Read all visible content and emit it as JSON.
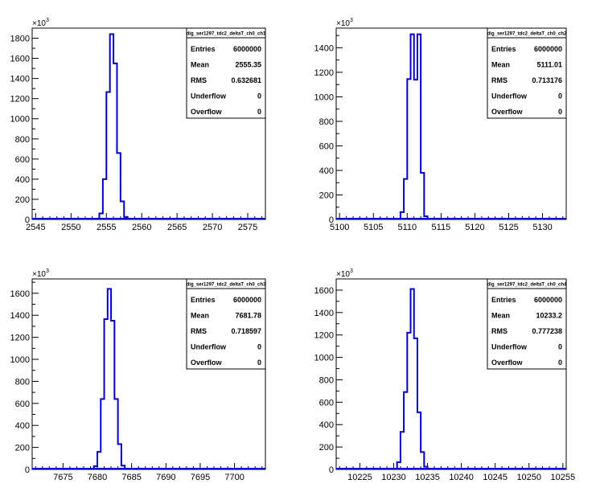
{
  "chart_data": [
    {
      "type": "histogram",
      "title": "dig_ser1297_tdc2_deltaT_ch0_ch1",
      "y_multiplier_label": "×10",
      "y_multiplier_exponent": "3",
      "xlim": [
        2544.5,
        2577.5
      ],
      "ylim": [
        0,
        1900
      ],
      "xticks": [
        2545,
        2550,
        2555,
        2560,
        2565,
        2570,
        2575
      ],
      "yticks": [
        0,
        200,
        400,
        600,
        800,
        1000,
        1200,
        1400,
        1600,
        1800
      ],
      "bins": [
        {
          "x0": 2553.5,
          "x1": 2554.0,
          "y": 0
        },
        {
          "x0": 2554.0,
          "x1": 2554.5,
          "y": 60
        },
        {
          "x0": 2554.5,
          "x1": 2555.0,
          "y": 400
        },
        {
          "x0": 2555.0,
          "x1": 2555.5,
          "y": 1265
        },
        {
          "x0": 2555.5,
          "x1": 2556.0,
          "y": 1840
        },
        {
          "x0": 2556.0,
          "x1": 2556.5,
          "y": 1550
        },
        {
          "x0": 2556.5,
          "x1": 2557.0,
          "y": 660
        },
        {
          "x0": 2557.0,
          "x1": 2557.5,
          "y": 180
        },
        {
          "x0": 2557.5,
          "x1": 2558.0,
          "y": 25
        },
        {
          "x0": 2558.0,
          "x1": 2558.5,
          "y": 0
        }
      ],
      "stats": [
        {
          "label": "Entries",
          "value": "6000000"
        },
        {
          "label": "Mean",
          "value": "2555.35"
        },
        {
          "label": "RMS",
          "value": "0.632681"
        },
        {
          "label": "Underflow",
          "value": "0"
        },
        {
          "label": "Overflow",
          "value": "0"
        }
      ]
    },
    {
      "type": "histogram",
      "title": "dig_ser1297_tdc2_deltaT_ch0_ch2",
      "y_multiplier_label": "×10",
      "y_multiplier_exponent": "3",
      "xlim": [
        5099.5,
        5133.5
      ],
      "ylim": [
        0,
        1560
      ],
      "xticks": [
        5100,
        5105,
        5110,
        5115,
        5120,
        5125,
        5130
      ],
      "yticks": [
        0,
        200,
        400,
        600,
        800,
        1000,
        1200,
        1400
      ],
      "bins": [
        {
          "x0": 5108.5,
          "x1": 5109.0,
          "y": 0
        },
        {
          "x0": 5109.0,
          "x1": 5109.5,
          "y": 60
        },
        {
          "x0": 5109.5,
          "x1": 5110.0,
          "y": 330
        },
        {
          "x0": 5110.0,
          "x1": 5110.5,
          "y": 1145
        },
        {
          "x0": 5110.5,
          "x1": 5111.0,
          "y": 1510
        },
        {
          "x0": 5111.0,
          "x1": 5111.5,
          "y": 1140
        },
        {
          "x0": 5111.5,
          "x1": 5112.0,
          "y": 1510
        },
        {
          "x0": 5112.0,
          "x1": 5112.5,
          "y": 380
        },
        {
          "x0": 5112.5,
          "x1": 5113.0,
          "y": 25
        },
        {
          "x0": 5113.0,
          "x1": 5113.5,
          "y": 0
        }
      ],
      "stats": [
        {
          "label": "Entries",
          "value": "6000000"
        },
        {
          "label": "Mean",
          "value": "5111.01"
        },
        {
          "label": "RMS",
          "value": "0.713176"
        },
        {
          "label": "Underflow",
          "value": "0"
        },
        {
          "label": "Overflow",
          "value": "0"
        }
      ]
    },
    {
      "type": "histogram",
      "title": "dig_ser1297_tdc2_deltaT_ch0_ch3",
      "y_multiplier_label": "×10",
      "y_multiplier_exponent": "3",
      "xlim": [
        7670.5,
        7704.5
      ],
      "ylim": [
        0,
        1730
      ],
      "xticks": [
        7675,
        7680,
        7685,
        7690,
        7695,
        7700
      ],
      "yticks": [
        0,
        200,
        400,
        600,
        800,
        1000,
        1200,
        1400,
        1600
      ],
      "bins": [
        {
          "x0": 7679.0,
          "x1": 7679.5,
          "y": 0
        },
        {
          "x0": 7679.5,
          "x1": 7680.0,
          "y": 30
        },
        {
          "x0": 7680.0,
          "x1": 7680.5,
          "y": 160
        },
        {
          "x0": 7680.5,
          "x1": 7681.0,
          "y": 640
        },
        {
          "x0": 7681.0,
          "x1": 7681.5,
          "y": 1365
        },
        {
          "x0": 7681.5,
          "x1": 7682.0,
          "y": 1640
        },
        {
          "x0": 7682.0,
          "x1": 7682.5,
          "y": 1350
        },
        {
          "x0": 7682.5,
          "x1": 7683.0,
          "y": 640
        },
        {
          "x0": 7683.0,
          "x1": 7683.5,
          "y": 230
        },
        {
          "x0": 7683.5,
          "x1": 7684.0,
          "y": 35
        },
        {
          "x0": 7684.0,
          "x1": 7684.5,
          "y": 0
        }
      ],
      "stats": [
        {
          "label": "Entries",
          "value": "6000000"
        },
        {
          "label": "Mean",
          "value": "7681.78"
        },
        {
          "label": "RMS",
          "value": "0.718597"
        },
        {
          "label": "Underflow",
          "value": "0"
        },
        {
          "label": "Overflow",
          "value": "0"
        }
      ]
    },
    {
      "type": "histogram",
      "title": "dig_ser1297_tdc2_deltaT_ch0_ch4",
      "y_multiplier_label": "×10",
      "y_multiplier_exponent": "3",
      "xlim": [
        10221.5,
        10255.5
      ],
      "ylim": [
        0,
        1700
      ],
      "xticks": [
        10225,
        10230,
        10235,
        10240,
        10245,
        10250,
        10255
      ],
      "yticks": [
        0,
        200,
        400,
        600,
        800,
        1000,
        1200,
        1400,
        1600
      ],
      "bins": [
        {
          "x0": 10230.0,
          "x1": 10230.5,
          "y": 0
        },
        {
          "x0": 10230.5,
          "x1": 10231.0,
          "y": 65
        },
        {
          "x0": 10231.0,
          "x1": 10231.5,
          "y": 335
        },
        {
          "x0": 10231.5,
          "x1": 10232.0,
          "y": 690
        },
        {
          "x0": 10232.0,
          "x1": 10232.5,
          "y": 1220
        },
        {
          "x0": 10232.5,
          "x1": 10233.0,
          "y": 1610
        },
        {
          "x0": 10233.0,
          "x1": 10233.5,
          "y": 1170
        },
        {
          "x0": 10233.5,
          "x1": 10234.0,
          "y": 510
        },
        {
          "x0": 10234.0,
          "x1": 10234.5,
          "y": 155
        },
        {
          "x0": 10234.5,
          "x1": 10235.0,
          "y": 25
        },
        {
          "x0": 10235.0,
          "x1": 10235.5,
          "y": 0
        }
      ],
      "stats": [
        {
          "label": "Entries",
          "value": "6000000"
        },
        {
          "label": "Mean",
          "value": "10233.2"
        },
        {
          "label": "RMS",
          "value": "0.777238"
        },
        {
          "label": "Underflow",
          "value": "0"
        },
        {
          "label": "Overflow",
          "value": "0"
        }
      ]
    }
  ],
  "style": {
    "histogram_line_color": "#0000cc",
    "axis_color": "#000000",
    "background_color": "#ffffff"
  }
}
